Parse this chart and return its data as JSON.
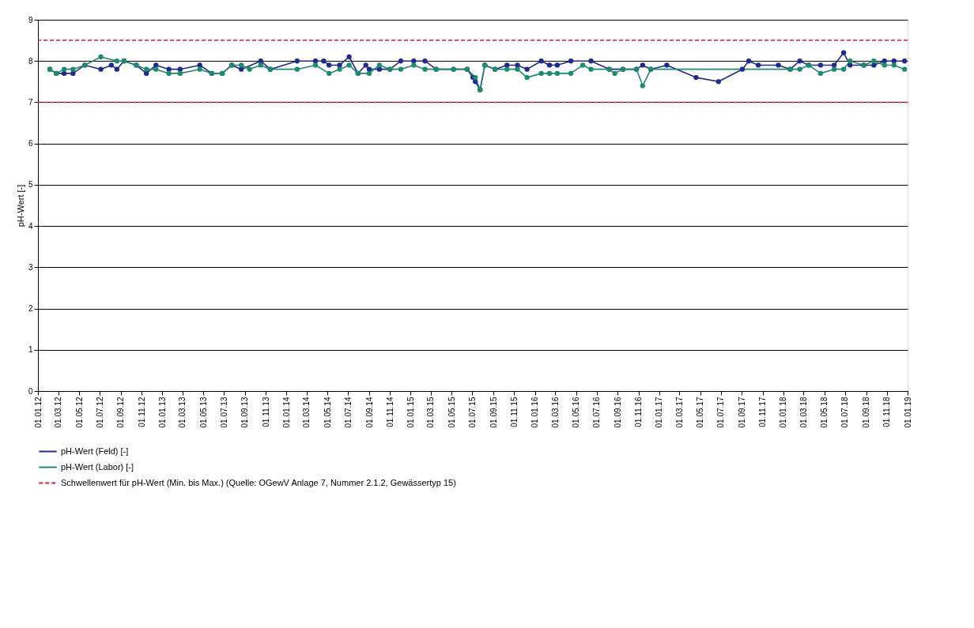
{
  "chart_data": {
    "type": "line",
    "ylabel": "pH-Wert [-]",
    "ylim": [
      0,
      9
    ],
    "yticks": [
      0,
      1,
      2,
      3,
      4,
      5,
      6,
      7,
      8,
      9
    ],
    "grid": "y",
    "marker": "circle",
    "line_style": "solid",
    "legend": "bottom left",
    "xlim": [
      "2012-01-01",
      "2019-01-01"
    ],
    "xticks": [
      {
        "value": "2012-01-01",
        "label": "01.01.12"
      },
      {
        "value": "2012-03-01",
        "label": "01.03.12"
      },
      {
        "value": "2012-05-01",
        "label": "01.05.12"
      },
      {
        "value": "2012-07-01",
        "label": "01.07.12"
      },
      {
        "value": "2012-09-01",
        "label": "01.09.12"
      },
      {
        "value": "2012-11-01",
        "label": "01.11.12"
      },
      {
        "value": "2013-01-01",
        "label": "01.01.13"
      },
      {
        "value": "2013-03-01",
        "label": "01.03.13"
      },
      {
        "value": "2013-05-01",
        "label": "01.05.13"
      },
      {
        "value": "2013-07-01",
        "label": "01.07.13"
      },
      {
        "value": "2013-09-01",
        "label": "01.09.13"
      },
      {
        "value": "2013-11-01",
        "label": "01.11.13"
      },
      {
        "value": "2014-01-01",
        "label": "01.01.14"
      },
      {
        "value": "2014-03-01",
        "label": "01.03.14"
      },
      {
        "value": "2014-05-01",
        "label": "01.05.14"
      },
      {
        "value": "2014-07-01",
        "label": "01.07.14"
      },
      {
        "value": "2014-09-01",
        "label": "01.09.14"
      },
      {
        "value": "2014-11-01",
        "label": "01.11.14"
      },
      {
        "value": "2015-01-01",
        "label": "01.01.15"
      },
      {
        "value": "2015-03-01",
        "label": "01.03.15"
      },
      {
        "value": "2015-05-01",
        "label": "01.05.15"
      },
      {
        "value": "2015-07-01",
        "label": "01.07.15"
      },
      {
        "value": "2015-09-01",
        "label": "01.09.15"
      },
      {
        "value": "2015-11-01",
        "label": "01.11.15"
      },
      {
        "value": "2016-01-01",
        "label": "01.01.16"
      },
      {
        "value": "2016-03-01",
        "label": "01.03.16"
      },
      {
        "value": "2016-05-01",
        "label": "01.05.16"
      },
      {
        "value": "2016-07-01",
        "label": "01.07.16"
      },
      {
        "value": "2016-09-01",
        "label": "01.09.16"
      },
      {
        "value": "2016-11-01",
        "label": "01.11.16"
      },
      {
        "value": "2017-01-01",
        "label": "01.01.17"
      },
      {
        "value": "2017-03-01",
        "label": "01.03.17"
      },
      {
        "value": "2017-05-01",
        "label": "01.05.17"
      },
      {
        "value": "2017-07-01",
        "label": "01.07.17"
      },
      {
        "value": "2017-09-01",
        "label": "01.09.17"
      },
      {
        "value": "2017-11-01",
        "label": "01.11.17"
      },
      {
        "value": "2018-01-01",
        "label": "01.01.18"
      },
      {
        "value": "2018-03-01",
        "label": "01.03.18"
      },
      {
        "value": "2018-05-01",
        "label": "01.05.18"
      },
      {
        "value": "2018-07-01",
        "label": "01.07.18"
      },
      {
        "value": "2018-09-01",
        "label": "01.09.18"
      },
      {
        "value": "2018-11-01",
        "label": "01.11.18"
      },
      {
        "value": "2019-01-01",
        "label": "01.01.19"
      }
    ],
    "series": [
      {
        "name": "pH-Wert (Feld) [-]",
        "color": "#1f2a8c",
        "x": [
          "2012-02-05",
          "2012-02-24",
          "2012-03-18",
          "2012-04-13",
          "2012-05-18",
          "2012-07-04",
          "2012-08-04",
          "2012-08-20",
          "2012-09-10",
          "2012-10-16",
          "2012-11-15",
          "2012-12-13",
          "2013-01-20",
          "2013-02-22",
          "2013-04-21",
          "2013-05-26",
          "2013-06-26",
          "2013-07-24",
          "2013-08-21",
          "2013-10-17",
          "2013-11-14",
          "2014-02-01",
          "2014-03-27",
          "2014-04-20",
          "2014-05-06",
          "2014-06-06",
          "2014-07-04",
          "2014-07-30",
          "2014-08-22",
          "2014-09-01",
          "2014-10-01",
          "2014-11-01",
          "2014-12-03",
          "2015-01-10",
          "2015-02-12",
          "2015-03-17",
          "2015-05-07",
          "2015-06-16",
          "2015-07-03",
          "2015-07-10",
          "2015-07-24",
          "2015-08-07",
          "2015-09-06",
          "2015-10-11",
          "2015-11-11",
          "2015-12-09",
          "2016-01-20",
          "2016-02-13",
          "2016-03-07",
          "2016-04-16",
          "2016-06-14",
          "2016-08-07",
          "2016-09-16",
          "2016-10-26",
          "2016-11-13",
          "2016-12-07",
          "2017-01-23",
          "2017-04-19",
          "2017-06-24",
          "2017-09-02",
          "2017-09-21",
          "2017-10-19",
          "2017-12-17",
          "2018-01-21",
          "2018-02-18",
          "2018-03-16",
          "2018-04-20",
          "2018-05-30",
          "2018-06-27",
          "2018-07-16",
          "2018-08-25",
          "2018-09-24",
          "2018-10-25",
          "2018-11-22",
          "2018-12-23"
        ],
        "values": [
          7.8,
          7.7,
          7.7,
          7.7,
          7.9,
          7.8,
          7.9,
          7.8,
          8.0,
          7.9,
          7.7,
          7.9,
          7.8,
          7.8,
          7.9,
          7.7,
          7.7,
          7.9,
          7.8,
          8.0,
          7.8,
          8.0,
          8.0,
          8.0,
          7.9,
          7.9,
          8.1,
          7.7,
          7.9,
          7.8,
          7.8,
          7.8,
          8.0,
          8.0,
          8.0,
          7.8,
          7.8,
          7.8,
          7.6,
          7.5,
          7.3,
          7.9,
          7.8,
          7.9,
          7.9,
          7.8,
          8.0,
          7.9,
          7.9,
          8.0,
          8.0,
          7.8,
          7.8,
          7.8,
          7.9,
          7.8,
          7.9,
          7.6,
          7.5,
          7.8,
          8.0,
          7.9,
          7.9,
          7.8,
          8.0,
          7.9,
          7.9,
          7.9,
          8.2,
          7.9,
          7.9,
          7.9,
          8.0,
          8.0,
          8.0
        ]
      },
      {
        "name": "pH-Wert (Labor) [-]",
        "color": "#1f8a6e",
        "x": [
          "2012-02-05",
          "2012-02-24",
          "2012-03-18",
          "2012-04-13",
          "2012-05-18",
          "2012-07-04",
          "2012-08-20",
          "2012-09-10",
          "2012-10-16",
          "2012-11-15",
          "2012-12-13",
          "2013-01-20",
          "2013-02-22",
          "2013-04-21",
          "2013-05-26",
          "2013-06-26",
          "2013-07-24",
          "2013-08-21",
          "2013-09-14",
          "2013-10-17",
          "2013-11-14",
          "2014-02-01",
          "2014-03-27",
          "2014-05-06",
          "2014-06-06",
          "2014-07-04",
          "2014-07-30",
          "2014-09-01",
          "2014-10-01",
          "2014-11-01",
          "2014-12-03",
          "2015-01-10",
          "2015-02-12",
          "2015-03-17",
          "2015-05-07",
          "2015-06-16",
          "2015-07-10",
          "2015-07-24",
          "2015-08-07",
          "2015-09-06",
          "2015-10-11",
          "2015-11-11",
          "2015-12-09",
          "2016-01-20",
          "2016-02-13",
          "2016-03-07",
          "2016-04-16",
          "2016-05-21",
          "2016-06-14",
          "2016-08-07",
          "2016-08-23",
          "2016-09-16",
          "2016-10-26",
          "2016-11-13",
          "2016-12-07",
          "2018-01-21",
          "2018-02-18",
          "2018-03-16",
          "2018-04-20",
          "2018-05-30",
          "2018-06-27",
          "2018-07-16",
          "2018-08-25",
          "2018-09-24",
          "2018-10-25",
          "2018-11-22",
          "2018-12-23"
        ],
        "values": [
          7.8,
          7.7,
          7.8,
          7.8,
          7.9,
          8.1,
          8.0,
          8.0,
          7.9,
          7.8,
          7.8,
          7.7,
          7.7,
          7.8,
          7.7,
          7.7,
          7.9,
          7.9,
          7.8,
          7.9,
          7.8,
          7.8,
          7.9,
          7.7,
          7.8,
          7.9,
          7.7,
          7.7,
          7.9,
          7.8,
          7.8,
          7.9,
          7.8,
          7.8,
          7.8,
          7.8,
          7.6,
          7.3,
          7.9,
          7.8,
          7.8,
          7.8,
          7.6,
          7.7,
          7.7,
          7.7,
          7.7,
          7.9,
          7.8,
          7.8,
          7.7,
          7.8,
          7.8,
          7.4,
          7.8,
          7.8,
          7.8,
          7.9,
          7.7,
          7.8,
          7.8,
          8.0,
          7.9,
          8.0,
          7.9,
          7.9,
          7.8
        ]
      }
    ],
    "ref_lines": [
      {
        "axis": "y",
        "value": 7,
        "label": "Schwellenwert für pH-Wert (Min. bis Max.) (Quelle: OGewV Anlage 7, Nummer 2.1.2, Gewässertyp 15)",
        "color": "#cc2244",
        "line_style": "dashed"
      },
      {
        "axis": "y",
        "value": 8.5,
        "color": "#cc2244",
        "line_style": "dashed"
      }
    ]
  }
}
